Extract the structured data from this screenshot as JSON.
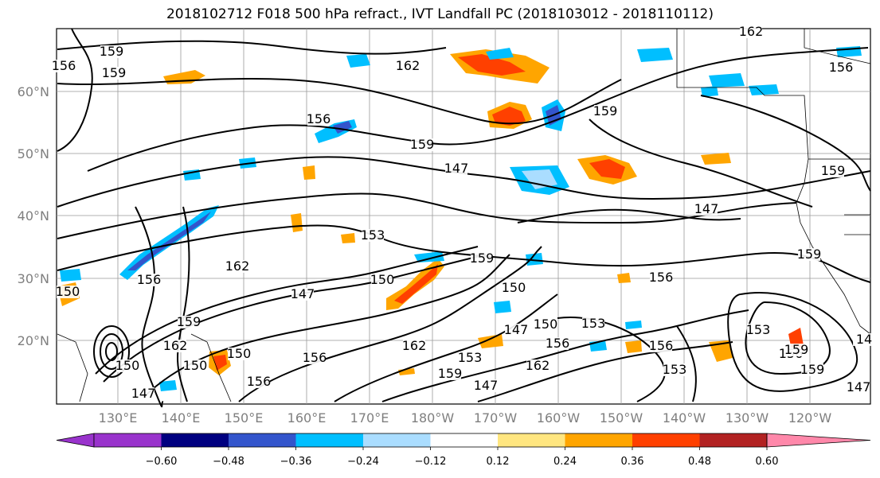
{
  "title": "2018102712 F018 500 hPa refract., IVT Landfall PC (2018103012 - 2018110112)",
  "map": {
    "lon_ticks": [
      "130°E",
      "140°E",
      "150°E",
      "160°E",
      "170°E",
      "180°W",
      "170°W",
      "160°W",
      "150°W",
      "140°W",
      "130°W",
      "120°W"
    ],
    "lat_ticks": [
      "60°N",
      "50°N",
      "40°N",
      "30°N",
      "20°N"
    ],
    "contour_labels": [
      "159",
      "156",
      "159",
      "162",
      "156",
      "159",
      "147",
      "150",
      "156",
      "159",
      "162",
      "153",
      "150",
      "147",
      "156",
      "159",
      "162",
      "150",
      "147",
      "156",
      "150",
      "153",
      "147",
      "156",
      "159",
      "153",
      "156",
      "159",
      "162",
      "153",
      "159",
      "156",
      "159",
      "150",
      "147",
      "156",
      "150",
      "162",
      "147",
      "14",
      "147",
      "159",
      "156",
      "153",
      "150",
      "159",
      "162"
    ],
    "grid": true
  },
  "colorbar": {
    "ticks": [
      "−0.60",
      "−0.48",
      "−0.36",
      "−0.24",
      "−0.12",
      "0.12",
      "0.24",
      "0.36",
      "0.48",
      "0.60"
    ],
    "colors": [
      "#9933cc",
      "#000080",
      "#3355cc",
      "#00bfff",
      "#aaddff",
      "#ffffff",
      "#ffe680",
      "#ffa500",
      "#ff4000",
      "#b22222",
      "#ff88aa"
    ]
  }
}
